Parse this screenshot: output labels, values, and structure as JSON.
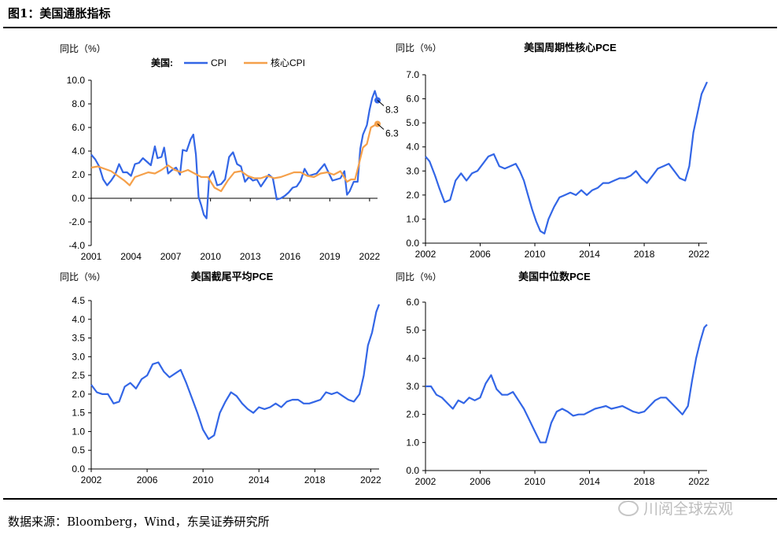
{
  "figure_title": "图1：美国通胀指标",
  "source": "数据来源：Bloomberg，Wind，东吴证券研究所",
  "watermark": "川阅全球宏观",
  "colors": {
    "blue": "#3366e6",
    "orange": "#f5a04a",
    "axis": "#000000"
  },
  "chart_data": [
    {
      "type": "line",
      "title": "",
      "ylabel": "同比（%）",
      "legend_prefix": "美国:",
      "legend": "top",
      "ylim": [
        -4,
        10
      ],
      "yticks": [
        "10.0",
        "8.0",
        "6.0",
        "4.0",
        "2.0",
        "0.0",
        "-2.0",
        "-4.0"
      ],
      "xlim": [
        2001,
        2022.6
      ],
      "xticks": [
        2001,
        2004,
        2007,
        2010,
        2013,
        2016,
        2019,
        2022
      ],
      "annotations": [
        {
          "text": "8.3",
          "x": 2022.6,
          "y": 8.3,
          "series": "CPI"
        },
        {
          "text": "6.3",
          "x": 2022.6,
          "y": 6.3,
          "series": "核心CPI"
        }
      ],
      "series": [
        {
          "name": "CPI",
          "color": "#3366e6",
          "x": [
            2001.0,
            2001.3,
            2001.6,
            2001.9,
            2002.2,
            2002.5,
            2002.8,
            2003.1,
            2003.4,
            2003.7,
            2004.0,
            2004.3,
            2004.6,
            2004.9,
            2005.2,
            2005.5,
            2005.8,
            2006.0,
            2006.3,
            2006.5,
            2006.8,
            2007.1,
            2007.4,
            2007.7,
            2007.9,
            2008.2,
            2008.5,
            2008.7,
            2008.9,
            2009.1,
            2009.3,
            2009.5,
            2009.7,
            2009.9,
            2010.2,
            2010.5,
            2010.8,
            2011.1,
            2011.4,
            2011.7,
            2012.0,
            2012.3,
            2012.6,
            2012.9,
            2013.2,
            2013.5,
            2013.8,
            2014.1,
            2014.4,
            2014.7,
            2015.0,
            2015.3,
            2015.6,
            2015.9,
            2016.2,
            2016.5,
            2016.8,
            2017.1,
            2017.4,
            2017.7,
            2018.0,
            2018.3,
            2018.6,
            2018.9,
            2019.2,
            2019.5,
            2019.8,
            2020.1,
            2020.3,
            2020.5,
            2020.8,
            2021.1,
            2021.3,
            2021.5,
            2021.8,
            2022.0,
            2022.2,
            2022.4,
            2022.6
          ],
          "y": [
            3.7,
            3.3,
            2.7,
            1.6,
            1.1,
            1.5,
            2.0,
            2.9,
            2.2,
            2.2,
            1.9,
            2.9,
            3.0,
            3.4,
            3.1,
            2.8,
            4.4,
            3.4,
            3.5,
            4.3,
            2.1,
            2.4,
            2.6,
            2.0,
            4.1,
            4.0,
            5.0,
            5.4,
            3.7,
            0.1,
            -0.6,
            -1.4,
            -1.7,
            1.8,
            2.3,
            1.1,
            1.2,
            1.6,
            3.5,
            3.9,
            2.9,
            2.7,
            1.4,
            1.8,
            1.5,
            1.6,
            1.0,
            1.5,
            2.0,
            1.7,
            -0.1,
            0.0,
            0.2,
            0.5,
            0.9,
            1.0,
            1.5,
            2.5,
            1.9,
            2.0,
            2.1,
            2.5,
            2.9,
            2.2,
            1.5,
            1.6,
            1.7,
            2.3,
            0.3,
            0.6,
            1.4,
            1.4,
            4.2,
            5.4,
            6.2,
            7.5,
            8.5,
            9.1,
            8.3
          ]
        },
        {
          "name": "核心CPI",
          "color": "#f5a04a",
          "x": [
            2001.0,
            2001.5,
            2002.0,
            2002.5,
            2003.0,
            2003.5,
            2003.9,
            2004.3,
            2004.8,
            2005.3,
            2005.8,
            2006.3,
            2006.8,
            2007.3,
            2007.8,
            2008.3,
            2008.8,
            2009.3,
            2009.8,
            2010.3,
            2010.8,
            2011.3,
            2011.8,
            2012.3,
            2012.8,
            2013.3,
            2013.8,
            2014.3,
            2014.8,
            2015.3,
            2015.8,
            2016.3,
            2016.8,
            2017.3,
            2017.8,
            2018.3,
            2018.8,
            2019.3,
            2019.8,
            2020.3,
            2020.6,
            2020.9,
            2021.2,
            2021.5,
            2021.8,
            2022.1,
            2022.4,
            2022.6
          ],
          "y": [
            2.6,
            2.7,
            2.5,
            2.3,
            1.9,
            1.5,
            1.1,
            1.8,
            2.0,
            2.2,
            2.1,
            2.4,
            2.8,
            2.4,
            2.2,
            2.4,
            2.1,
            1.8,
            1.8,
            0.9,
            0.6,
            1.5,
            2.2,
            2.3,
            1.9,
            1.7,
            1.7,
            1.9,
            1.7,
            1.8,
            2.0,
            2.2,
            2.2,
            1.9,
            1.8,
            2.1,
            2.2,
            2.0,
            2.3,
            1.4,
            1.6,
            1.6,
            2.9,
            4.3,
            4.6,
            6.0,
            6.2,
            6.3
          ]
        }
      ]
    },
    {
      "type": "line",
      "title": "美国周期性核心PCE",
      "ylabel": "同比（%）",
      "ylim": [
        0,
        7
      ],
      "yticks": [
        "7.0",
        "6.0",
        "5.0",
        "4.0",
        "3.0",
        "2.0",
        "1.0",
        "0.0"
      ],
      "xlim": [
        2002,
        2022.6
      ],
      "xticks": [
        2002,
        2006,
        2010,
        2014,
        2018,
        2022
      ],
      "series": [
        {
          "name": "",
          "color": "#3366e6",
          "x": [
            2002.0,
            2002.3,
            2002.7,
            2003.0,
            2003.4,
            2003.8,
            2004.2,
            2004.6,
            2005.0,
            2005.4,
            2005.8,
            2006.2,
            2006.6,
            2007.0,
            2007.4,
            2007.8,
            2008.2,
            2008.6,
            2008.9,
            2009.2,
            2009.5,
            2009.8,
            2010.1,
            2010.4,
            2010.7,
            2011.0,
            2011.4,
            2011.8,
            2012.2,
            2012.6,
            2013.0,
            2013.4,
            2013.8,
            2014.2,
            2014.6,
            2015.0,
            2015.4,
            2015.8,
            2016.2,
            2016.6,
            2017.0,
            2017.4,
            2017.8,
            2018.2,
            2018.6,
            2019.0,
            2019.4,
            2019.8,
            2020.2,
            2020.6,
            2021.0,
            2021.3,
            2021.6,
            2021.9,
            2022.2,
            2022.6
          ],
          "y": [
            3.6,
            3.4,
            2.8,
            2.3,
            1.7,
            1.8,
            2.6,
            2.9,
            2.6,
            2.9,
            3.0,
            3.3,
            3.6,
            3.7,
            3.2,
            3.1,
            3.2,
            3.3,
            3.0,
            2.6,
            2.0,
            1.4,
            0.9,
            0.5,
            0.4,
            1.0,
            1.5,
            1.9,
            2.0,
            2.1,
            2.0,
            2.2,
            2.0,
            2.2,
            2.3,
            2.5,
            2.5,
            2.6,
            2.7,
            2.7,
            2.8,
            3.0,
            2.7,
            2.5,
            2.8,
            3.1,
            3.2,
            3.3,
            3.0,
            2.7,
            2.6,
            3.2,
            4.6,
            5.4,
            6.2,
            6.7
          ]
        }
      ]
    },
    {
      "type": "line",
      "title": "美国截尾平均PCE",
      "ylabel": "同比（%）",
      "ylim": [
        0,
        4.5
      ],
      "yticks": [
        "4.5",
        "4.0",
        "3.5",
        "3.0",
        "2.5",
        "2.0",
        "1.5",
        "1.0",
        "0.5",
        "0.0"
      ],
      "xlim": [
        2002,
        2022.6
      ],
      "xticks": [
        2002,
        2006,
        2010,
        2014,
        2018,
        2022
      ],
      "series": [
        {
          "name": "",
          "color": "#3366e6",
          "x": [
            2002.0,
            2002.4,
            2002.8,
            2003.2,
            2003.6,
            2004.0,
            2004.4,
            2004.8,
            2005.2,
            2005.6,
            2006.0,
            2006.4,
            2006.8,
            2007.2,
            2007.6,
            2008.0,
            2008.4,
            2008.8,
            2009.2,
            2009.6,
            2010.0,
            2010.4,
            2010.8,
            2011.2,
            2011.6,
            2012.0,
            2012.4,
            2012.8,
            2013.2,
            2013.6,
            2014.0,
            2014.4,
            2014.8,
            2015.2,
            2015.6,
            2016.0,
            2016.4,
            2016.8,
            2017.2,
            2017.6,
            2018.0,
            2018.4,
            2018.8,
            2019.2,
            2019.6,
            2020.0,
            2020.4,
            2020.8,
            2021.2,
            2021.5,
            2021.8,
            2022.1,
            2022.4,
            2022.6
          ],
          "y": [
            2.25,
            2.05,
            2.0,
            2.0,
            1.75,
            1.8,
            2.2,
            2.3,
            2.15,
            2.4,
            2.5,
            2.8,
            2.85,
            2.6,
            2.45,
            2.55,
            2.65,
            2.3,
            1.9,
            1.5,
            1.05,
            0.8,
            0.9,
            1.5,
            1.8,
            2.05,
            1.95,
            1.75,
            1.6,
            1.5,
            1.65,
            1.6,
            1.65,
            1.75,
            1.65,
            1.8,
            1.85,
            1.85,
            1.75,
            1.75,
            1.8,
            1.85,
            2.05,
            2.0,
            2.05,
            1.95,
            1.85,
            1.8,
            2.0,
            2.5,
            3.3,
            3.65,
            4.2,
            4.4
          ]
        }
      ]
    },
    {
      "type": "line",
      "title": "美国中位数PCE",
      "ylabel": "同比（%）",
      "ylim": [
        0,
        6
      ],
      "yticks": [
        "6.0",
        "5.0",
        "4.0",
        "3.0",
        "2.0",
        "1.0",
        "0.0"
      ],
      "xlim": [
        2002,
        2022.6
      ],
      "xticks": [
        2002,
        2006,
        2010,
        2014,
        2018,
        2022
      ],
      "series": [
        {
          "name": "",
          "color": "#3366e6",
          "x": [
            2002.0,
            2002.4,
            2002.8,
            2003.2,
            2003.6,
            2004.0,
            2004.4,
            2004.8,
            2005.2,
            2005.6,
            2006.0,
            2006.4,
            2006.8,
            2007.2,
            2007.6,
            2008.0,
            2008.4,
            2008.8,
            2009.2,
            2009.6,
            2010.0,
            2010.4,
            2010.8,
            2011.2,
            2011.6,
            2012.0,
            2012.4,
            2012.8,
            2013.2,
            2013.6,
            2014.0,
            2014.4,
            2014.8,
            2015.2,
            2015.6,
            2016.0,
            2016.4,
            2016.8,
            2017.2,
            2017.6,
            2018.0,
            2018.4,
            2018.8,
            2019.2,
            2019.6,
            2020.0,
            2020.4,
            2020.8,
            2021.2,
            2021.5,
            2021.8,
            2022.1,
            2022.4,
            2022.6
          ],
          "y": [
            3.0,
            3.0,
            2.7,
            2.6,
            2.4,
            2.2,
            2.5,
            2.4,
            2.6,
            2.5,
            2.6,
            3.1,
            3.4,
            2.9,
            2.7,
            2.7,
            2.8,
            2.5,
            2.2,
            1.8,
            1.4,
            1.0,
            1.0,
            1.7,
            2.1,
            2.2,
            2.1,
            1.95,
            2.0,
            2.0,
            2.1,
            2.2,
            2.25,
            2.3,
            2.2,
            2.25,
            2.3,
            2.2,
            2.1,
            2.05,
            2.1,
            2.3,
            2.5,
            2.6,
            2.6,
            2.4,
            2.2,
            2.0,
            2.3,
            3.2,
            4.0,
            4.6,
            5.1,
            5.2
          ]
        }
      ]
    }
  ]
}
